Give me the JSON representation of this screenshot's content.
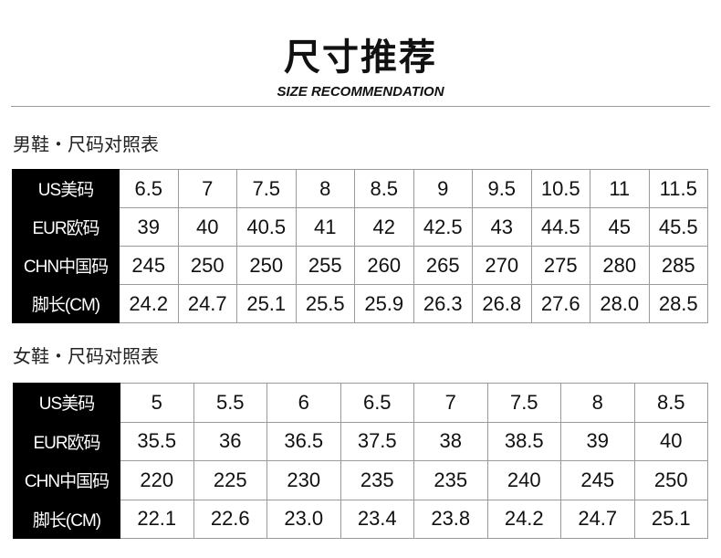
{
  "header": {
    "title": "尺寸推荐",
    "subtitle": "SIZE RECOMMENDATION"
  },
  "men": {
    "label": "男鞋・尺码对照表",
    "rows": [
      {
        "head": "US美码",
        "cells": [
          "6.5",
          "7",
          "7.5",
          "8",
          "8.5",
          "9",
          "9.5",
          "10.5",
          "11",
          "11.5"
        ]
      },
      {
        "head": "EUR欧码",
        "cells": [
          "39",
          "40",
          "40.5",
          "41",
          "42",
          "42.5",
          "43",
          "44.5",
          "45",
          "45.5"
        ]
      },
      {
        "head": "CHN中国码",
        "cells": [
          "245",
          "250",
          "250",
          "255",
          "260",
          "265",
          "270",
          "275",
          "280",
          "285"
        ]
      },
      {
        "head": "脚长(CM)",
        "cells": [
          "24.2",
          "24.7",
          "25.1",
          "25.5",
          "25.9",
          "26.3",
          "26.8",
          "27.6",
          "28.0",
          "28.5"
        ]
      }
    ]
  },
  "women": {
    "label": "女鞋・尺码对照表",
    "rows": [
      {
        "head": "US美码",
        "cells": [
          "5",
          "5.5",
          "6",
          "6.5",
          "7",
          "7.5",
          "8",
          "8.5"
        ]
      },
      {
        "head": "EUR欧码",
        "cells": [
          "35.5",
          "36",
          "36.5",
          "37.5",
          "38",
          "38.5",
          "39",
          "40"
        ]
      },
      {
        "head": "CHN中国码",
        "cells": [
          "220",
          "225",
          "230",
          "235",
          "235",
          "240",
          "245",
          "250"
        ]
      },
      {
        "head": "脚长(CM)",
        "cells": [
          "22.1",
          "22.6",
          "23.0",
          "23.4",
          "23.8",
          "24.2",
          "24.7",
          "25.1"
        ]
      }
    ]
  }
}
